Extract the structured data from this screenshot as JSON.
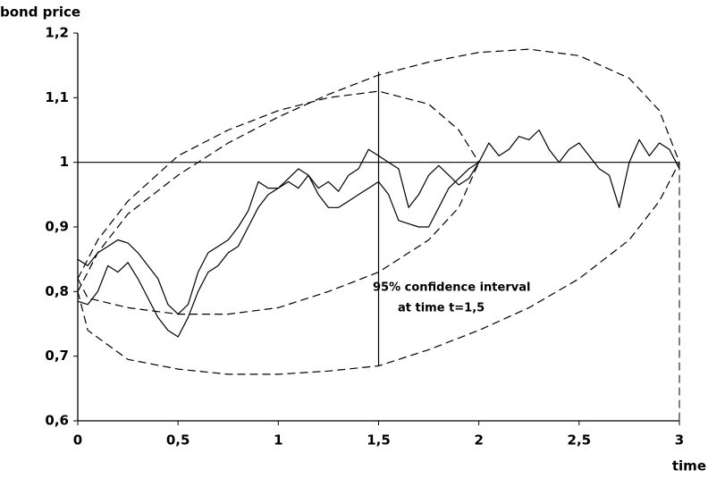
{
  "chart_data": {
    "type": "line",
    "y_label": "bond price",
    "x_label": "time",
    "xlim": [
      0,
      3
    ],
    "ylim": [
      0.6,
      1.2
    ],
    "xticks": [
      0,
      {
        "value": 0.5,
        "label": "0,5"
      },
      1,
      {
        "value": 1.5,
        "label": "1,5"
      },
      2,
      {
        "value": 2.5,
        "label": "2,5"
      },
      3
    ],
    "yticks": [
      {
        "value": 0.6,
        "label": "0,6"
      },
      {
        "value": 0.7,
        "label": "0,7"
      },
      {
        "value": 0.8,
        "label": "0,8"
      },
      {
        "value": 0.9,
        "label": "0,9"
      },
      1,
      {
        "value": 1.1,
        "label": "1,1"
      },
      {
        "value": 1.2,
        "label": "1,2"
      }
    ],
    "hline": 1,
    "interval": {
      "x": 1.5,
      "low": 0.685,
      "high": 1.14
    },
    "annotations": [
      "95% confidence interval",
      "at time t=1,5"
    ],
    "series": [
      {
        "color": "#000",
        "style": "solid",
        "x": [
          0,
          0.05,
          0.1,
          0.15,
          0.2,
          0.25,
          0.3,
          0.35,
          0.4,
          0.45,
          0.5,
          0.55,
          0.6,
          0.65,
          0.7,
          0.75,
          0.8,
          0.85,
          0.9,
          0.95,
          1,
          1.05,
          1.1,
          1.15,
          1.2,
          1.25,
          1.3,
          1.35,
          1.4,
          1.45,
          1.5,
          1.55,
          1.6,
          1.65,
          1.7,
          1.75,
          1.8,
          1.85,
          1.9,
          1.95,
          2,
          2.05,
          2.1,
          2.15,
          2.2,
          2.25,
          2.3,
          2.35,
          2.4,
          2.45,
          2.5,
          2.55,
          2.6,
          2.65,
          2.7,
          2.75,
          2.8,
          2.85,
          2.9,
          2.95,
          3
        ],
        "values": [
          0.85,
          0.84,
          0.86,
          0.87,
          0.88,
          0.875,
          0.86,
          0.84,
          0.82,
          0.78,
          0.765,
          0.78,
          0.83,
          0.86,
          0.87,
          0.88,
          0.9,
          0.925,
          0.97,
          0.96,
          0.96,
          0.975,
          0.99,
          0.98,
          0.96,
          0.97,
          0.955,
          0.98,
          0.99,
          1.02,
          1.01,
          1.0,
          0.99,
          0.93,
          0.95,
          0.98,
          0.995,
          0.98,
          0.965,
          0.975,
          1.0,
          1.03,
          1.01,
          1.02,
          1.04,
          1.035,
          1.05,
          1.02,
          1.0,
          1.02,
          1.03,
          1.01,
          0.99,
          0.98,
          0.93,
          1.0,
          1.035,
          1.01,
          1.03,
          1.02,
          0.99
        ]
      },
      {
        "color": "#000",
        "style": "solid",
        "x": [
          0,
          0.05,
          0.1,
          0.15,
          0.2,
          0.25,
          0.3,
          0.35,
          0.4,
          0.45,
          0.5,
          0.55,
          0.6,
          0.65,
          0.7,
          0.75,
          0.8,
          0.85,
          0.9,
          0.95,
          1,
          1.05,
          1.1,
          1.15,
          1.2,
          1.25,
          1.3,
          1.35,
          1.4,
          1.45,
          1.5,
          1.55,
          1.6,
          1.65,
          1.7,
          1.75,
          1.8,
          1.85,
          1.9,
          1.95,
          2
        ],
        "values": [
          0.785,
          0.78,
          0.8,
          0.84,
          0.83,
          0.845,
          0.82,
          0.79,
          0.76,
          0.74,
          0.73,
          0.76,
          0.8,
          0.83,
          0.84,
          0.86,
          0.87,
          0.9,
          0.93,
          0.95,
          0.96,
          0.97,
          0.96,
          0.98,
          0.95,
          0.93,
          0.93,
          0.94,
          0.95,
          0.96,
          0.97,
          0.95,
          0.91,
          0.905,
          0.9,
          0.9,
          0.93,
          0.96,
          0.975,
          0.99,
          1.0
        ]
      },
      {
        "color": "#000",
        "style": "dashed",
        "x": [
          0,
          0.1,
          0.25,
          0.5,
          0.75,
          1,
          1.25,
          1.5,
          1.75,
          2,
          2.25,
          2.5,
          2.75,
          2.9,
          3
        ],
        "values": [
          0.8,
          0.86,
          0.92,
          0.98,
          1.03,
          1.07,
          1.105,
          1.135,
          1.155,
          1.17,
          1.175,
          1.165,
          1.13,
          1.08,
          1.0
        ]
      },
      {
        "color": "#000",
        "style": "dashed",
        "x": [
          0,
          0.05,
          0.25,
          0.5,
          0.75,
          1,
          1.25,
          1.5,
          1.75,
          2,
          2.25,
          2.5,
          2.75,
          2.9,
          3
        ],
        "values": [
          0.8,
          0.74,
          0.695,
          0.68,
          0.672,
          0.672,
          0.677,
          0.685,
          0.71,
          0.74,
          0.775,
          0.82,
          0.88,
          0.94,
          1.0
        ]
      },
      {
        "color": "#000",
        "style": "dashed",
        "x": [
          0,
          0.1,
          0.25,
          0.5,
          0.75,
          1,
          1.25,
          1.5,
          1.75,
          1.9,
          2
        ],
        "values": [
          0.82,
          0.88,
          0.94,
          1.01,
          1.05,
          1.08,
          1.1,
          1.11,
          1.09,
          1.05,
          1.0
        ]
      },
      {
        "color": "#000",
        "style": "dashed",
        "x": [
          0,
          0.05,
          0.25,
          0.5,
          0.75,
          1,
          1.25,
          1.5,
          1.75,
          1.9,
          2
        ],
        "values": [
          0.82,
          0.79,
          0.775,
          0.765,
          0.765,
          0.775,
          0.8,
          0.83,
          0.88,
          0.93,
          1.0
        ]
      }
    ]
  }
}
